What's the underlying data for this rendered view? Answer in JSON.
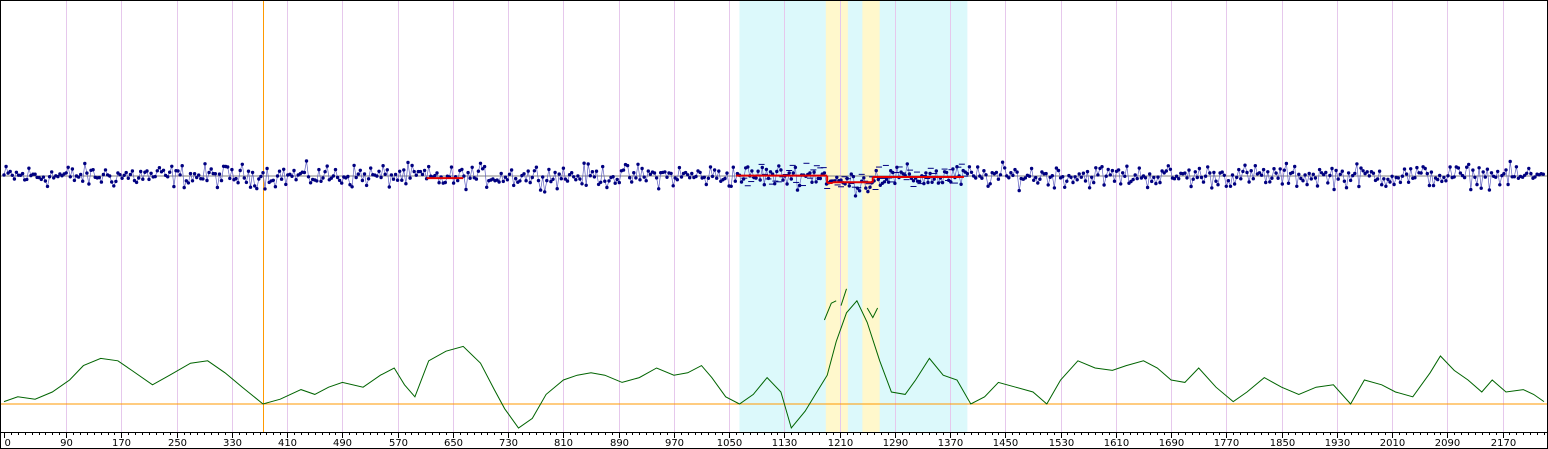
{
  "chart_data": {
    "type": "line",
    "title": "",
    "xlabel": "",
    "ylabel": "",
    "x_range": [
      0,
      2230
    ],
    "x_ticks": [
      0,
      90,
      170,
      250,
      330,
      410,
      490,
      570,
      650,
      730,
      810,
      890,
      970,
      1050,
      1130,
      1210,
      1290,
      1370,
      1450,
      1530,
      1610,
      1690,
      1770,
      1850,
      1930,
      2010,
      2090,
      2170
    ],
    "x_tick_labels": [
      "0",
      "90",
      "170",
      "250",
      "330",
      "410",
      "490",
      "570",
      "650",
      "730",
      "810",
      "890",
      "970",
      "1050",
      "1130",
      "1210",
      "1290",
      "1370",
      "1450",
      "1530",
      "1610",
      "1690",
      "1770",
      "1850",
      "1930",
      "2010",
      "2090",
      "2170"
    ],
    "grid": true,
    "legend": "none",
    "marker_line_x": 375,
    "highlight_regions": [
      {
        "from": 1065,
        "to": 1395,
        "color": "#dcf9fb"
      },
      {
        "from": 1190,
        "to": 1222,
        "color": "#fff8cc"
      },
      {
        "from": 1243,
        "to": 1268,
        "color": "#fff8cc"
      }
    ],
    "series": [
      {
        "role": "observations",
        "color": "#000080",
        "baseline": 0,
        "y_range": [
          -4.5,
          4.5
        ],
        "segment_levels": [
          {
            "from": 612,
            "to": 665,
            "value": -0.3
          },
          {
            "from": 1060,
            "to": 1192,
            "value": 0.05
          },
          {
            "from": 1192,
            "to": 1200,
            "value": -1.0
          },
          {
            "from": 1200,
            "to": 1258,
            "value": -0.9
          },
          {
            "from": 1258,
            "to": 1390,
            "value": -0.15
          }
        ]
      },
      {
        "role": "statistic",
        "color": "#006400",
        "threshold": 0,
        "threshold_color": "#ff9900",
        "y_range": [
          -1.2,
          5.5
        ],
        "points": [
          [
            0,
            0.1
          ],
          [
            20,
            0.3
          ],
          [
            45,
            0.2
          ],
          [
            70,
            0.5
          ],
          [
            95,
            1.0
          ],
          [
            115,
            1.6
          ],
          [
            140,
            1.9
          ],
          [
            165,
            1.8
          ],
          [
            185,
            1.4
          ],
          [
            215,
            0.8
          ],
          [
            240,
            1.2
          ],
          [
            270,
            1.7
          ],
          [
            295,
            1.8
          ],
          [
            320,
            1.3
          ],
          [
            345,
            0.7
          ],
          [
            375,
            0.0
          ],
          [
            400,
            0.2
          ],
          [
            430,
            0.6
          ],
          [
            450,
            0.4
          ],
          [
            470,
            0.7
          ],
          [
            490,
            0.9
          ],
          [
            520,
            0.7
          ],
          [
            545,
            1.2
          ],
          [
            565,
            1.5
          ],
          [
            580,
            0.8
          ],
          [
            595,
            0.3
          ],
          [
            615,
            1.8
          ],
          [
            640,
            2.2
          ],
          [
            665,
            2.4
          ],
          [
            690,
            1.7
          ],
          [
            710,
            0.6
          ],
          [
            725,
            -0.2
          ],
          [
            745,
            -1.0
          ],
          [
            765,
            -0.6
          ],
          [
            785,
            0.4
          ],
          [
            810,
            1.0
          ],
          [
            830,
            1.2
          ],
          [
            850,
            1.3
          ],
          [
            870,
            1.2
          ],
          [
            895,
            0.9
          ],
          [
            920,
            1.1
          ],
          [
            945,
            1.5
          ],
          [
            970,
            1.2
          ],
          [
            990,
            1.3
          ],
          [
            1010,
            1.6
          ],
          [
            1025,
            1.1
          ],
          [
            1045,
            0.3
          ],
          [
            1065,
            0.0
          ],
          [
            1085,
            0.4
          ],
          [
            1105,
            1.1
          ],
          [
            1125,
            0.5
          ],
          [
            1140,
            -1.0
          ],
          [
            1160,
            -0.3
          ],
          [
            1175,
            0.4
          ],
          [
            1192,
            1.2
          ],
          [
            1205,
            2.6
          ],
          [
            1220,
            3.8
          ],
          [
            1235,
            4.3
          ],
          [
            1250,
            3.4
          ],
          [
            1268,
            1.8
          ],
          [
            1285,
            0.5
          ],
          [
            1305,
            0.4
          ],
          [
            1320,
            1.0
          ],
          [
            1340,
            1.9
          ],
          [
            1360,
            1.2
          ],
          [
            1380,
            1.0
          ],
          [
            1400,
            0.0
          ],
          [
            1420,
            0.3
          ],
          [
            1440,
            0.9
          ],
          [
            1465,
            0.7
          ],
          [
            1490,
            0.5
          ],
          [
            1510,
            0.0
          ],
          [
            1530,
            1.0
          ],
          [
            1555,
            1.8
          ],
          [
            1580,
            1.5
          ],
          [
            1605,
            1.4
          ],
          [
            1625,
            1.6
          ],
          [
            1650,
            1.8
          ],
          [
            1670,
            1.5
          ],
          [
            1690,
            1.0
          ],
          [
            1710,
            0.9
          ],
          [
            1730,
            1.5
          ],
          [
            1755,
            0.7
          ],
          [
            1780,
            0.1
          ],
          [
            1800,
            0.5
          ],
          [
            1825,
            1.1
          ],
          [
            1850,
            0.7
          ],
          [
            1875,
            0.4
          ],
          [
            1900,
            0.7
          ],
          [
            1925,
            0.8
          ],
          [
            1950,
            0.0
          ],
          [
            1970,
            1.0
          ],
          [
            1995,
            0.8
          ],
          [
            2015,
            0.5
          ],
          [
            2040,
            0.3
          ],
          [
            2065,
            1.3
          ],
          [
            2080,
            2.0
          ],
          [
            2100,
            1.4
          ],
          [
            2120,
            1.0
          ],
          [
            2140,
            0.5
          ],
          [
            2155,
            1.0
          ],
          [
            2175,
            0.5
          ],
          [
            2200,
            0.6
          ],
          [
            2215,
            0.4
          ],
          [
            2230,
            0.1
          ]
        ],
        "branches": [
          {
            "points": [
              [
                1188,
                3.5
              ],
              [
                1198,
                4.2
              ],
              [
                1205,
                4.3
              ]
            ]
          },
          {
            "points": [
              [
                1212,
                4.1
              ],
              [
                1220,
                4.8
              ]
            ]
          },
          {
            "points": [
              [
                1250,
                4.0
              ],
              [
                1258,
                3.6
              ],
              [
                1265,
                4.0
              ]
            ]
          }
        ]
      }
    ]
  }
}
